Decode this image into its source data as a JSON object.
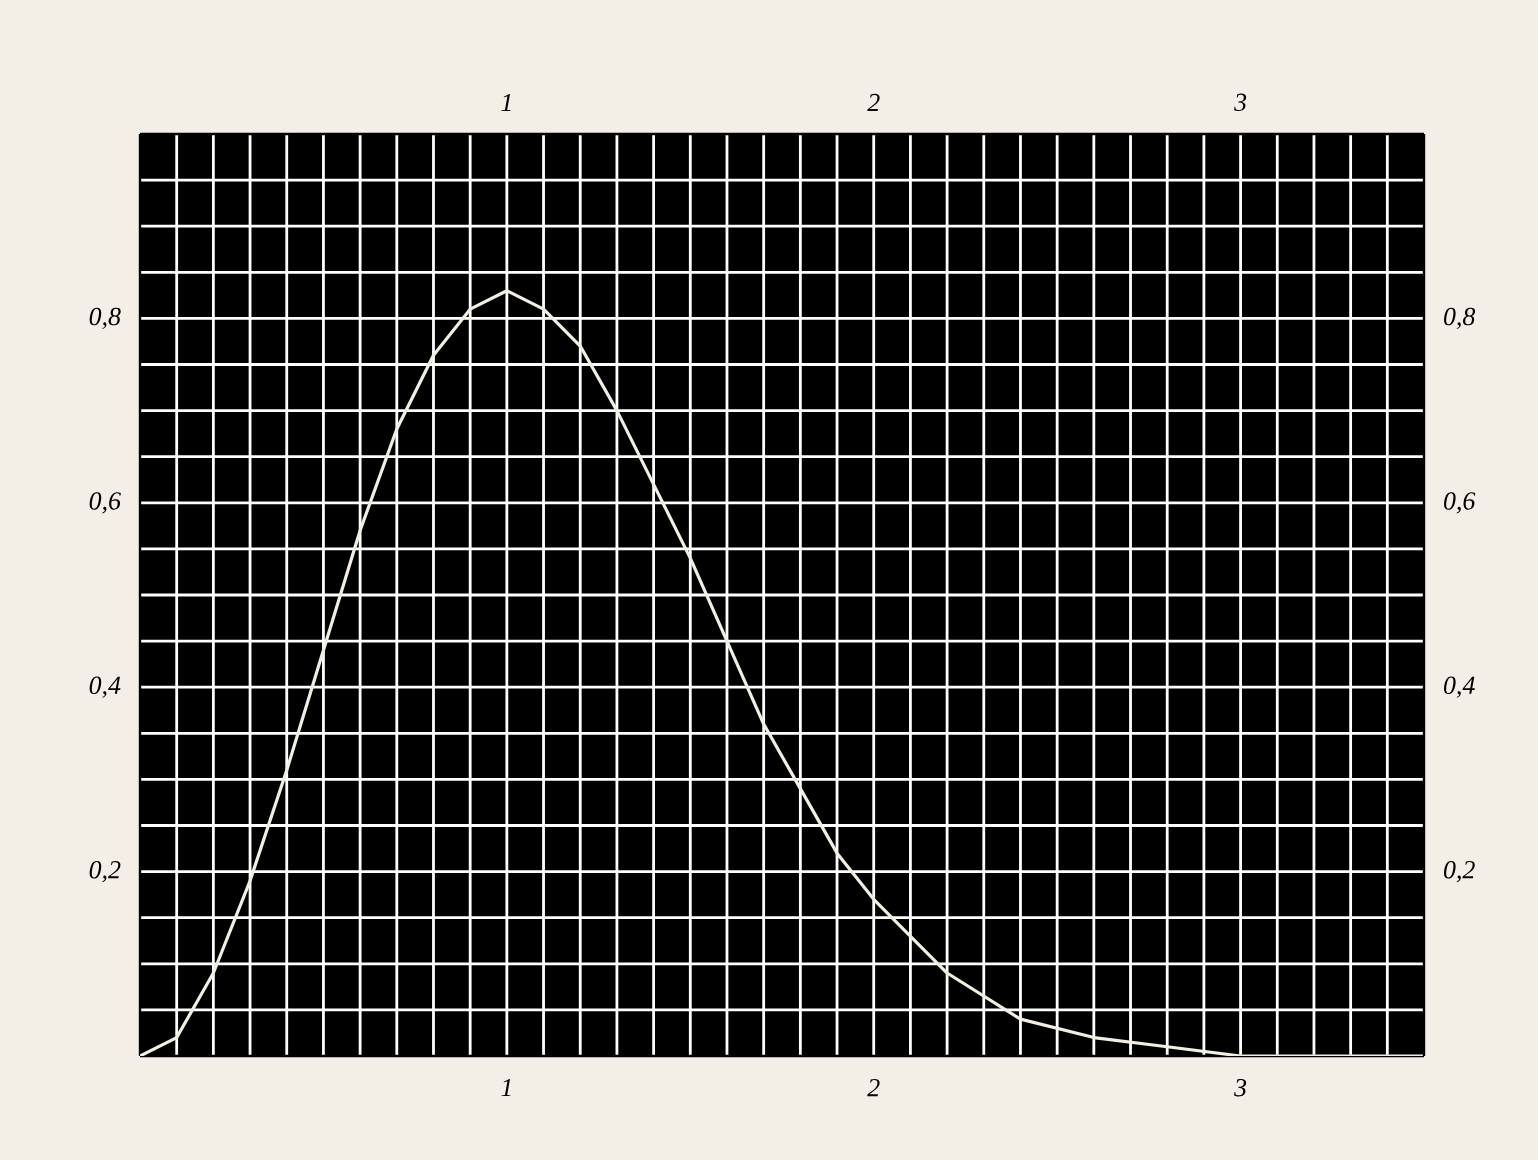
{
  "chart_data": {
    "type": "line",
    "color": "#f2eee4",
    "grid": true,
    "marker": "none",
    "line_style": "solid",
    "x": [
      0,
      0.1,
      0.2,
      0.3,
      0.4,
      0.5,
      0.6,
      0.7,
      0.8,
      0.9,
      1.0,
      1.1,
      1.2,
      1.3,
      1.4,
      1.5,
      1.6,
      1.7,
      1.8,
      1.9,
      2.0,
      2.2,
      2.4,
      2.6,
      2.8,
      3.0,
      3.2,
      3.5
    ],
    "values": [
      0,
      0.02,
      0.09,
      0.19,
      0.31,
      0.44,
      0.57,
      0.68,
      0.76,
      0.81,
      0.83,
      0.81,
      0.77,
      0.7,
      0.62,
      0.54,
      0.45,
      0.36,
      0.29,
      0.22,
      0.17,
      0.09,
      0.04,
      0.02,
      0.01,
      0,
      0,
      0
    ],
    "xlim": [
      0,
      3.5
    ],
    "ylim": [
      0,
      1
    ],
    "xticks": [
      {
        "value": 0.1,
        "label": null
      },
      {
        "value": 0.2,
        "label": null
      },
      {
        "value": 0.3,
        "label": null
      },
      {
        "value": 0.4,
        "label": null
      },
      {
        "value": 0.5,
        "label": null
      },
      {
        "value": 0.6,
        "label": null
      },
      {
        "value": 0.7,
        "label": null
      },
      {
        "value": 0.8,
        "label": null
      },
      {
        "value": 0.9,
        "label": null
      },
      1,
      {
        "value": 1.1,
        "label": null
      },
      {
        "value": 1.2,
        "label": null
      },
      {
        "value": 1.3,
        "label": null
      },
      {
        "value": 1.4,
        "label": null
      },
      {
        "value": 1.5,
        "label": null
      },
      {
        "value": 1.6,
        "label": null
      },
      {
        "value": 1.7,
        "label": null
      },
      {
        "value": 1.8,
        "label": null
      },
      {
        "value": 1.9,
        "label": null
      },
      2,
      {
        "value": 2.1,
        "label": null
      },
      {
        "value": 2.2,
        "label": null
      },
      {
        "value": 2.3,
        "label": null
      },
      {
        "value": 2.4,
        "label": null
      },
      {
        "value": 2.5,
        "label": null
      },
      {
        "value": 2.6,
        "label": null
      },
      {
        "value": 2.7,
        "label": null
      },
      {
        "value": 2.8,
        "label": null
      },
      {
        "value": 2.9,
        "label": null
      },
      3,
      {
        "value": 3.1,
        "label": null
      },
      {
        "value": 3.2,
        "label": null
      },
      {
        "value": 3.3,
        "label": null
      },
      {
        "value": 3.4,
        "label": null
      }
    ],
    "yticks": [
      {
        "value": 0.05,
        "label": null
      },
      {
        "value": 0.1,
        "label": null
      },
      {
        "value": 0.15,
        "label": null
      },
      {
        "value": 0.2,
        "label": "0,2"
      },
      {
        "value": 0.25,
        "label": null
      },
      {
        "value": 0.3,
        "label": null
      },
      {
        "value": 0.35,
        "label": null
      },
      {
        "value": 0.4,
        "label": "0,4"
      },
      {
        "value": 0.45,
        "label": null
      },
      {
        "value": 0.5,
        "label": null
      },
      {
        "value": 0.55,
        "label": null
      },
      {
        "value": 0.6,
        "label": "0,6"
      },
      {
        "value": 0.65,
        "label": null
      },
      {
        "value": 0.7,
        "label": null
      },
      {
        "value": 0.75,
        "label": null
      },
      {
        "value": 0.8,
        "label": "0,8"
      },
      {
        "value": 0.85,
        "label": null
      },
      {
        "value": 0.9,
        "label": null
      },
      {
        "value": 0.95,
        "label": null
      }
    ],
    "x2lim": [
      0,
      3.5
    ],
    "x2ticks": [
      1,
      2,
      3
    ],
    "y2lim": [
      0,
      1
    ],
    "y2ticks": [
      {
        "value": 0.2,
        "label": "0,2"
      },
      {
        "value": 0.4,
        "label": "0,4"
      },
      {
        "value": 0.6,
        "label": "0,6"
      },
      {
        "value": 0.8,
        "label": "0,8"
      }
    ]
  }
}
